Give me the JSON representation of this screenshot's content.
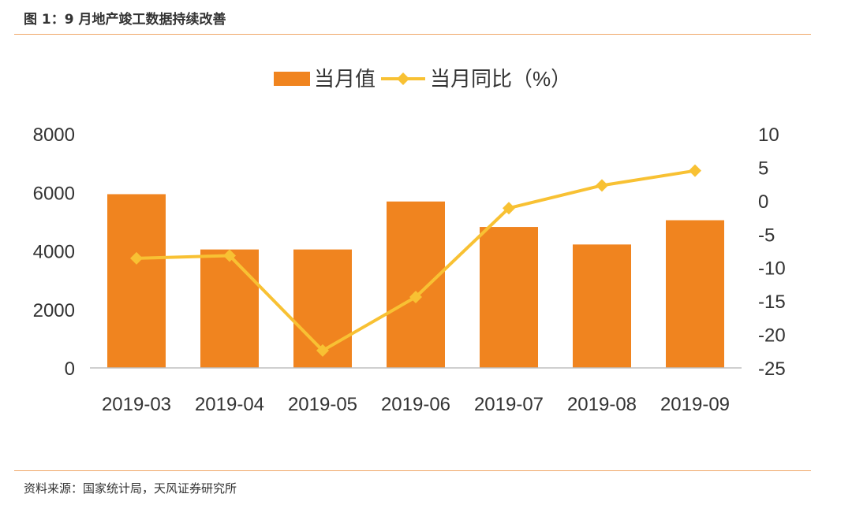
{
  "figure": {
    "title": "图 1：9 月地产竣工数据持续改善",
    "source": "资料来源：国家统计局，天风证券研究所"
  },
  "colors": {
    "bar": "#f0841f",
    "line": "#f8c133",
    "rule": "#f0a868",
    "text": "#333333",
    "axis": "#bfbfbf"
  },
  "chart_data": {
    "type": "bar",
    "title": "",
    "xlabel": "",
    "ylabel": "",
    "categories": [
      "2019-03",
      "2019-04",
      "2019-05",
      "2019-06",
      "2019-07",
      "2019-08",
      "2019-09"
    ],
    "legend_position": "top",
    "grid": false,
    "series": [
      {
        "name": "当月值",
        "type": "bar",
        "axis": "left",
        "values": [
          5940,
          4050,
          4050,
          5690,
          4820,
          4220,
          5050
        ]
      },
      {
        "name": "当月同比（%）",
        "type": "line",
        "axis": "right",
        "marker": "diamond",
        "values": [
          -8.6,
          -8.2,
          -22.4,
          -14.4,
          -1.1,
          2.3,
          4.5
        ]
      }
    ],
    "y_left": {
      "min": 0,
      "max": 8000,
      "ticks": [
        "0",
        "2000",
        "4000",
        "6000",
        "8000"
      ]
    },
    "y_right": {
      "min": -25,
      "max": 10,
      "ticks": [
        "10",
        "5",
        "0",
        "-5",
        "-10",
        "-15",
        "-20",
        "-25"
      ]
    }
  }
}
